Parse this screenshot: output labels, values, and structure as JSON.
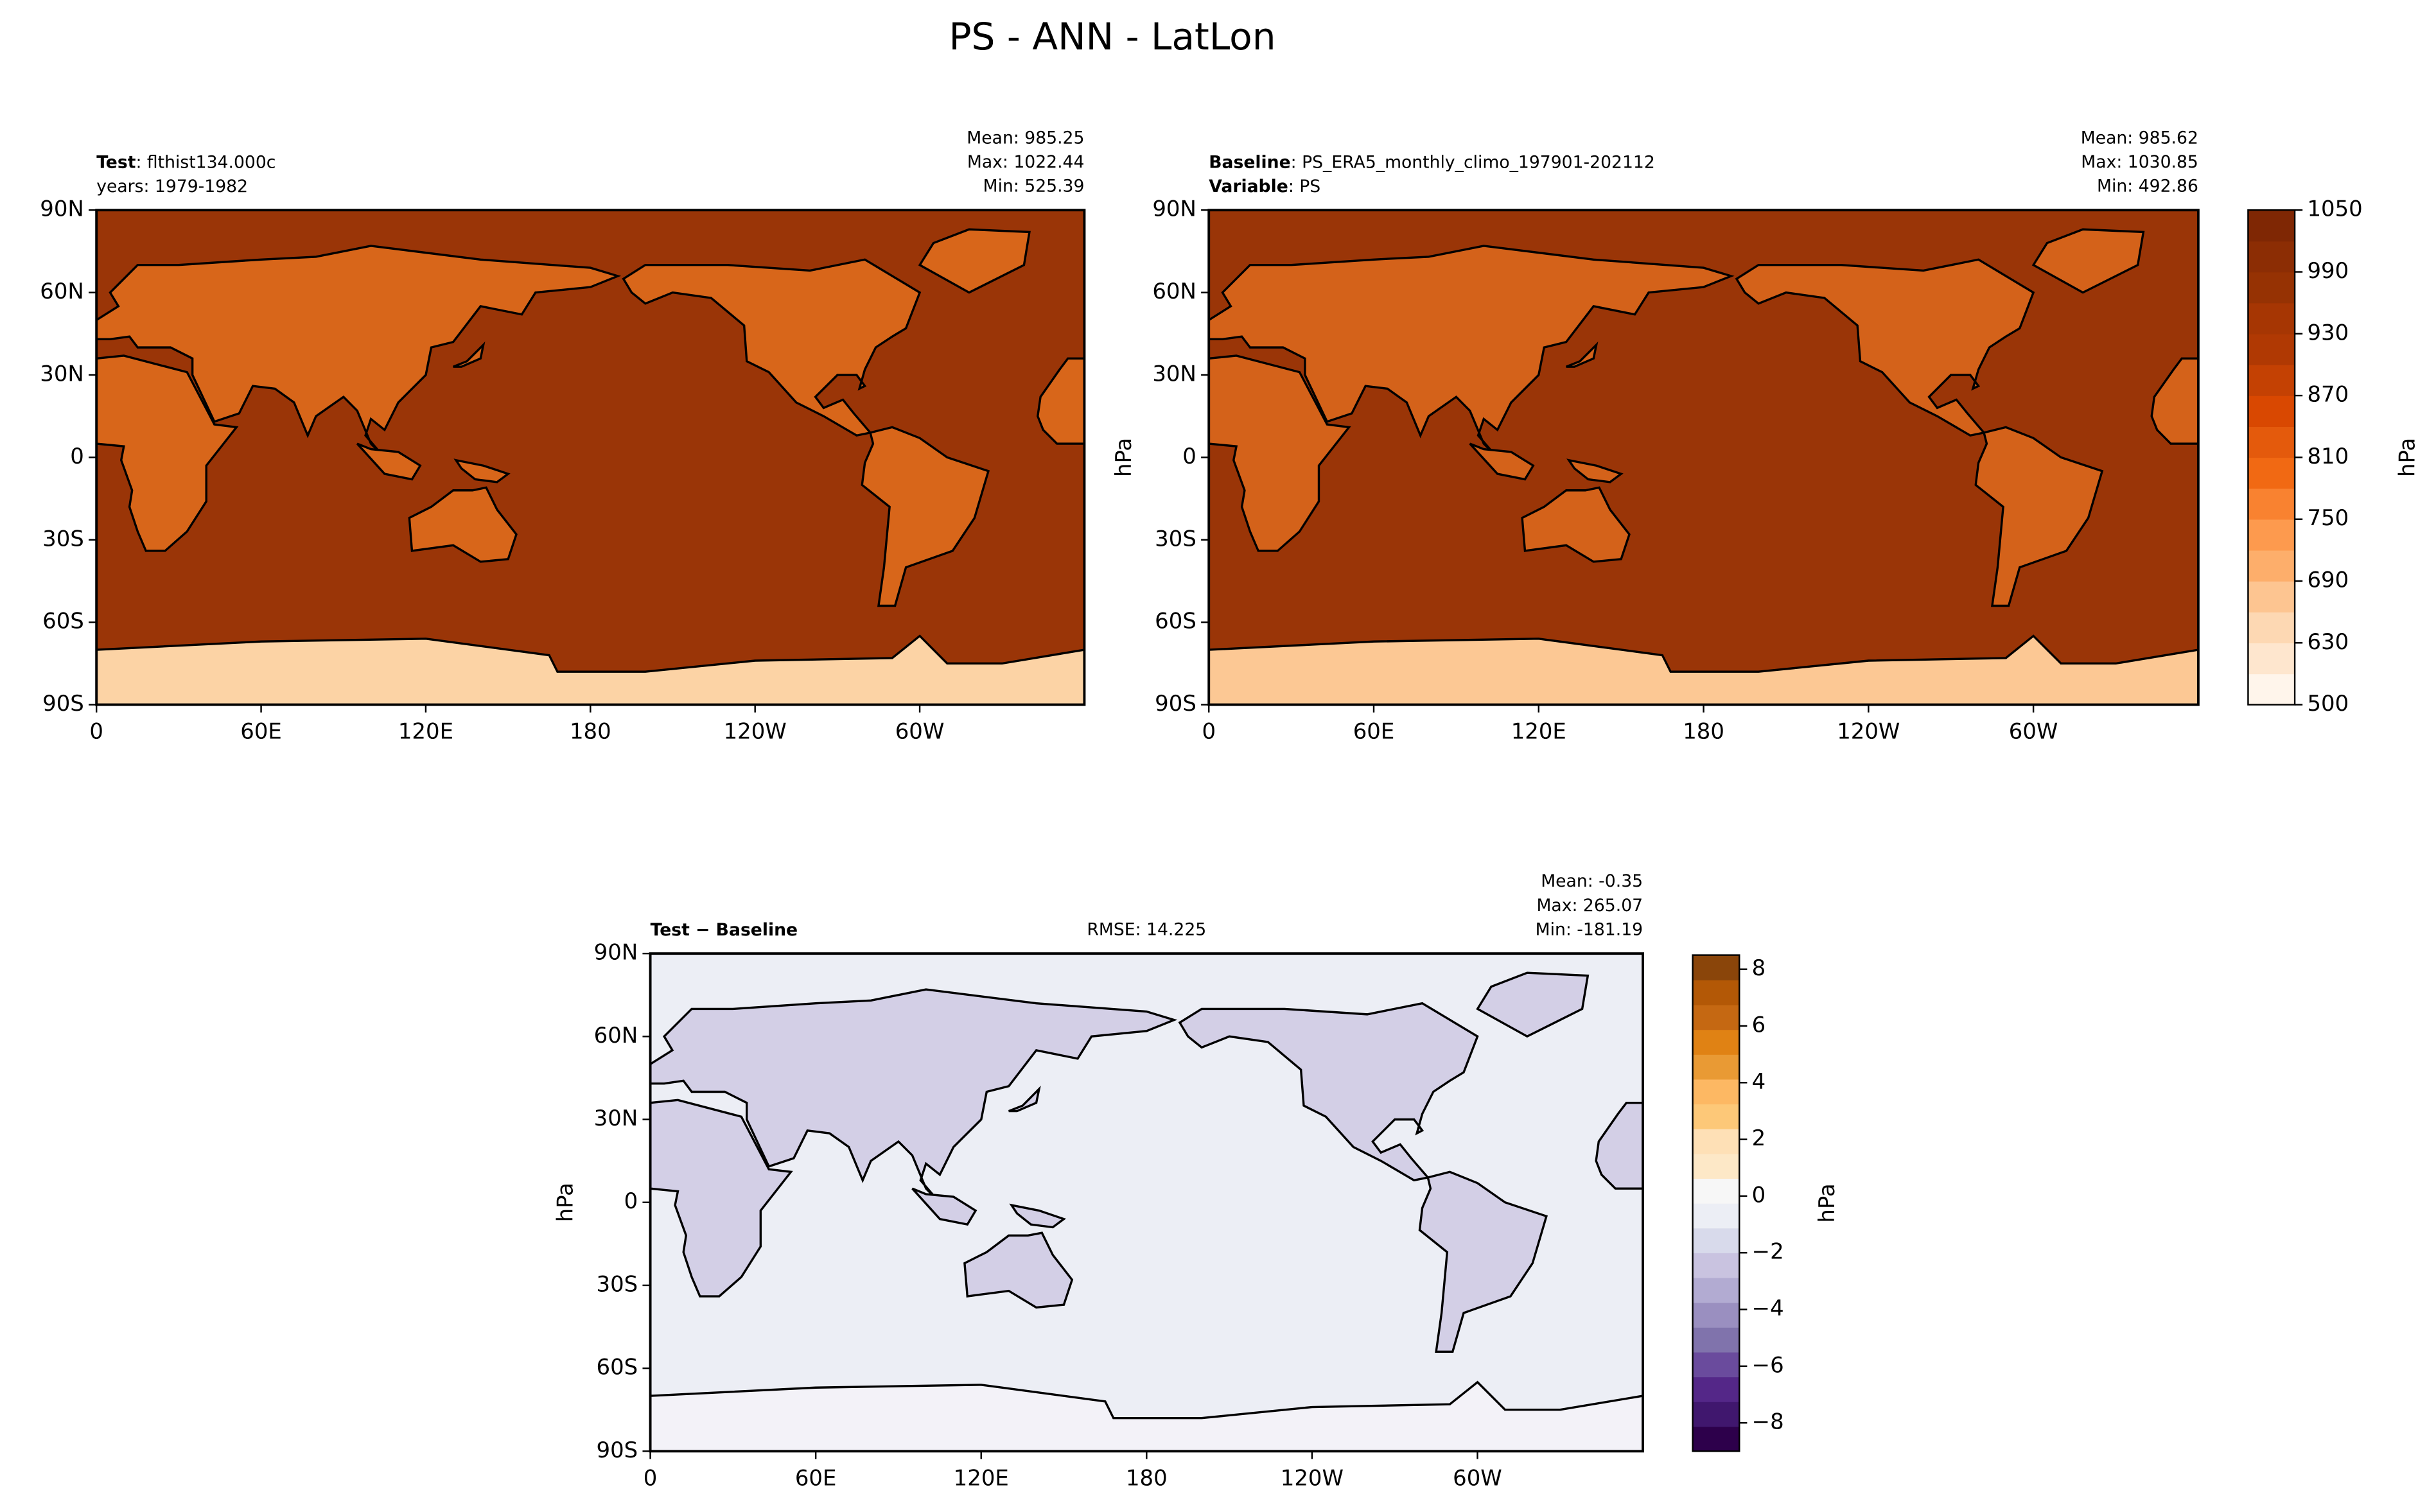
{
  "title": "PS - ANN - LatLon",
  "chart_data": [
    {
      "type": "map",
      "left_text": [
        {
          "bold": "Test",
          "text": ": flthist134.000c"
        },
        {
          "text": "years: 1979-1982"
        }
      ],
      "stats": [
        "Mean: 985.25",
        "Max: 1022.44",
        "Min: 525.39"
      ],
      "background": "#9a3507",
      "land_color": "#d8661a",
      "polar_color": "#fcd3a5",
      "xlim": [
        0,
        360
      ],
      "xticks": [
        0,
        {
          "value": 60,
          "label": "60E"
        },
        {
          "value": 120,
          "label": "120E"
        },
        180,
        {
          "value": 240,
          "label": "120W"
        },
        {
          "value": 300,
          "label": "60W"
        }
      ],
      "ylim": [
        -90,
        90
      ],
      "yticks": [
        {
          "value": 90,
          "label": "90N"
        },
        {
          "value": 60,
          "label": "60N"
        },
        {
          "value": 30,
          "label": "30N"
        },
        0,
        {
          "value": -30,
          "label": "30S"
        },
        {
          "value": -60,
          "label": "60S"
        },
        {
          "value": -90,
          "label": "90S"
        }
      ]
    },
    {
      "type": "map",
      "left_text": [
        {
          "bold": "Baseline",
          "text": ": PS_ERA5_monthly_climo_197901-202112"
        },
        {
          "bold": "Variable",
          "text": ": PS"
        }
      ],
      "stats": [
        "Mean: 985.62",
        "Max: 1030.85",
        "Min: 492.86"
      ],
      "ylabel": "hPa",
      "background": "#9a3507",
      "land_color": "#d4621a",
      "polar_color": "#fcc894",
      "xlim": [
        0,
        360
      ],
      "xticks": [
        0,
        {
          "value": 60,
          "label": "60E"
        },
        {
          "value": 120,
          "label": "120E"
        },
        180,
        {
          "value": 240,
          "label": "120W"
        },
        {
          "value": 300,
          "label": "60W"
        }
      ],
      "ylim": [
        -90,
        90
      ],
      "yticks": [
        {
          "value": 90,
          "label": "90N"
        },
        {
          "value": 60,
          "label": "60N"
        },
        {
          "value": 30,
          "label": "30N"
        },
        0,
        {
          "value": -30,
          "label": "30S"
        },
        {
          "value": -60,
          "label": "60S"
        },
        {
          "value": -90,
          "label": "90S"
        }
      ],
      "colorbar": {
        "label": "hPa",
        "ticks": [
          500,
          630,
          690,
          750,
          810,
          870,
          930,
          990,
          1050
        ],
        "colors": [
          "#fff5eb",
          "#fee6ce",
          "#fdd8b3",
          "#fdc591",
          "#fdae6b",
          "#fd9a4e",
          "#f98230",
          "#f16913",
          "#e45a0c",
          "#d94801",
          "#c44103",
          "#b03903",
          "#a63603",
          "#963203",
          "#8c2d04",
          "#7f2704"
        ]
      }
    },
    {
      "type": "map",
      "left_text": [
        {
          "bold": "Test − Baseline"
        }
      ],
      "center_text": "RMSE: 14.225",
      "stats": [
        "Mean: -0.35",
        "Max: 265.07",
        "Min: -181.19"
      ],
      "ylabel": "hPa",
      "background": "#eceef5",
      "land_color": "#d3cfe6",
      "polar_color": "#f3f2f8",
      "xlim": [
        0,
        360
      ],
      "xticks": [
        0,
        {
          "value": 60,
          "label": "60E"
        },
        {
          "value": 120,
          "label": "120E"
        },
        180,
        {
          "value": 240,
          "label": "120W"
        },
        {
          "value": 300,
          "label": "60W"
        }
      ],
      "ylim": [
        -90,
        90
      ],
      "yticks": [
        {
          "value": 90,
          "label": "90N"
        },
        {
          "value": 60,
          "label": "60N"
        },
        {
          "value": 30,
          "label": "30N"
        },
        0,
        {
          "value": -30,
          "label": "30S"
        },
        {
          "value": -60,
          "label": "60S"
        },
        {
          "value": -90,
          "label": "90S"
        }
      ],
      "colorbar": {
        "label": "hPa",
        "ylim": [
          -9,
          8.5
        ],
        "ticks": [
          {
            "value": -8,
            "label": "−8"
          },
          {
            "value": -6,
            "label": "−6"
          },
          {
            "value": -4,
            "label": "−4"
          },
          {
            "value": -2,
            "label": "−2"
          },
          0,
          2,
          4,
          6,
          8
        ],
        "colors": [
          "#2d004b",
          "#40176e",
          "#542788",
          "#6a4b9d",
          "#8073ac",
          "#9a8fc0",
          "#b2abd2",
          "#c9c3e0",
          "#d8daeb",
          "#eceef5",
          "#f7f7f7",
          "#fde8c7",
          "#fee0b6",
          "#fdc878",
          "#fdb863",
          "#e99a34",
          "#e08214",
          "#c56812",
          "#b35806",
          "#8a450a"
        ]
      }
    }
  ]
}
